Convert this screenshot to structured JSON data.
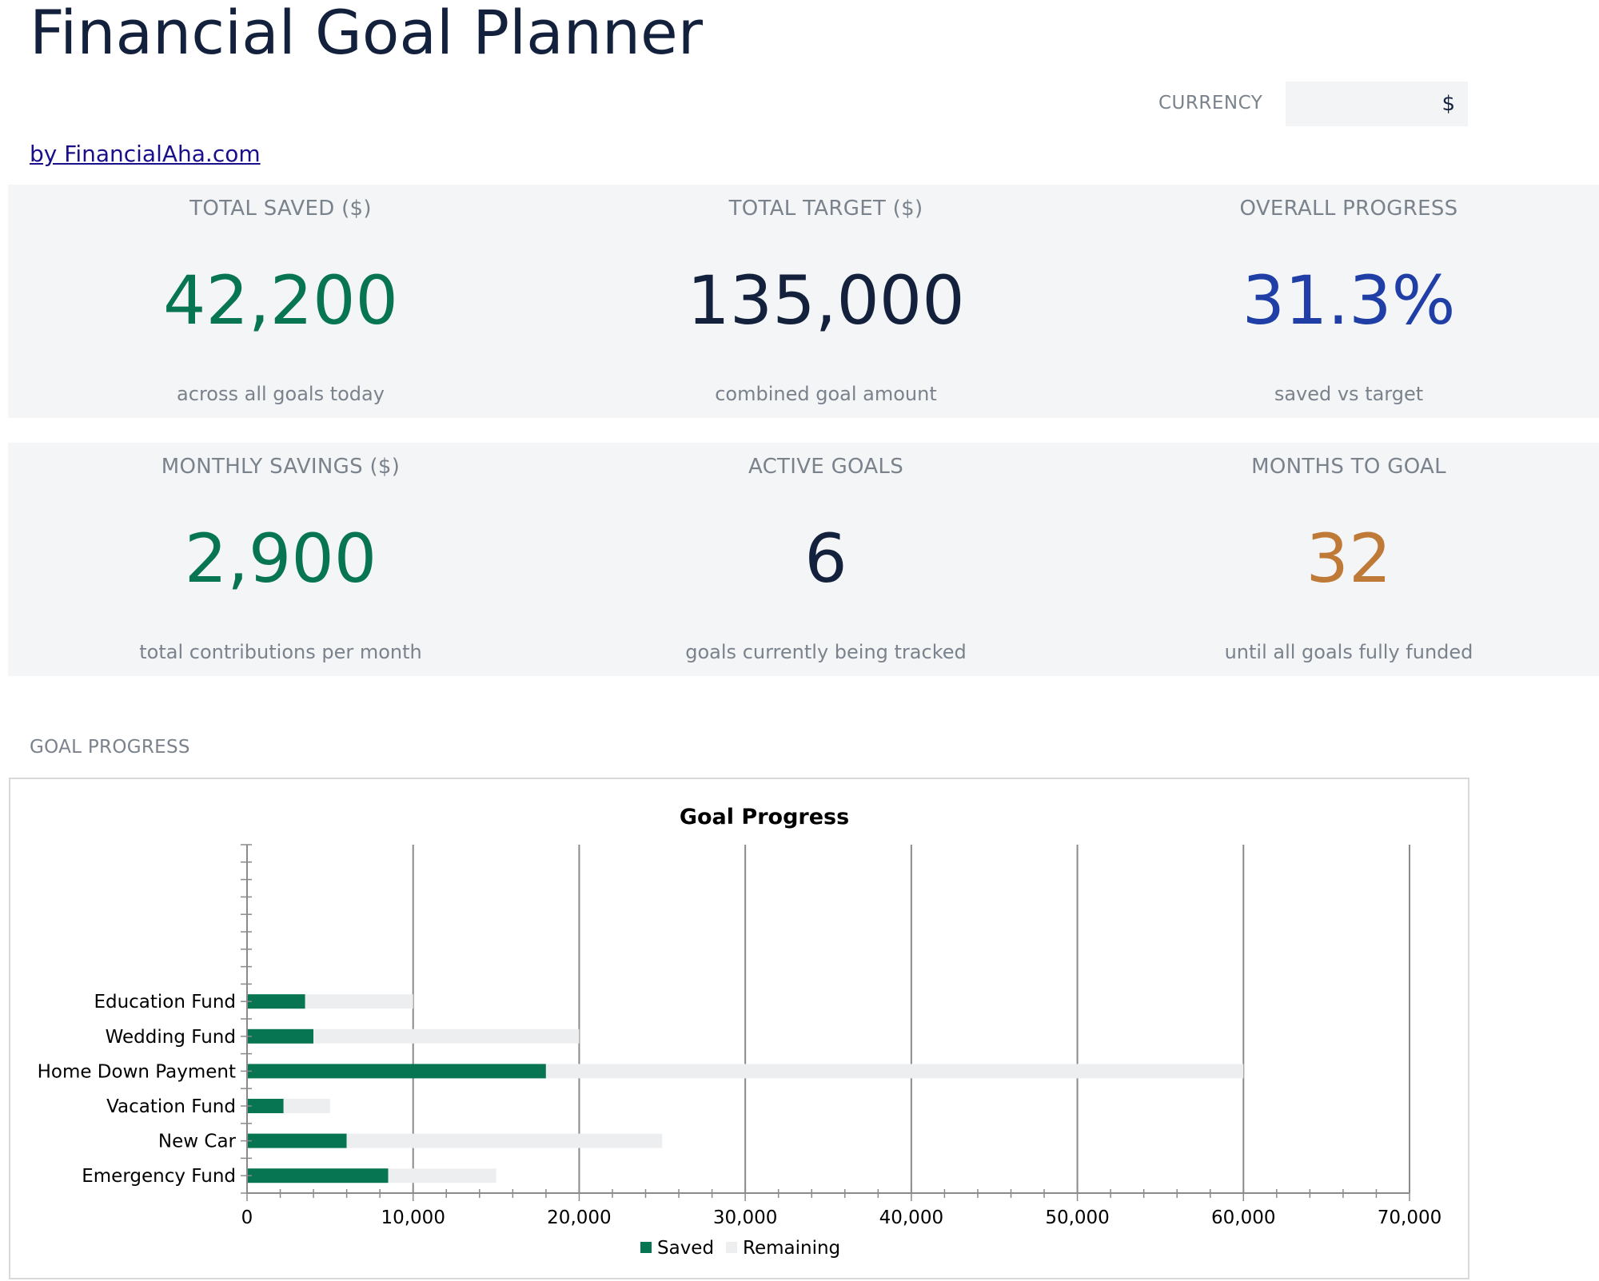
{
  "header": {
    "title": "Financial Goal Planner",
    "credit": "by FinancialAha.com"
  },
  "currency": {
    "label": "CURRENCY",
    "value": "$"
  },
  "kpis": [
    {
      "label": "TOTAL SAVED ($)",
      "value": "42,200",
      "sub": "across all goals today",
      "color": "#087552"
    },
    {
      "label": "TOTAL TARGET ($)",
      "value": "135,000",
      "sub": "combined goal amount",
      "color": "#14213d"
    },
    {
      "label": "OVERALL PROGRESS",
      "value": "31.3%",
      "sub": "saved vs target",
      "color": "#1f3fa6"
    },
    {
      "label": "MONTHLY SAVINGS ($)",
      "value": "2,900",
      "sub": "total contributions per month",
      "color": "#087552"
    },
    {
      "label": "ACTIVE GOALS",
      "value": "6",
      "sub": "goals currently being tracked",
      "color": "#14213d"
    },
    {
      "label": "MONTHS TO GOAL",
      "value": "32",
      "sub": "until all goals fully funded",
      "color": "#c07a37"
    }
  ],
  "section": {
    "goal_progress_label": "GOAL PROGRESS"
  },
  "chart_data": {
    "type": "bar",
    "orientation": "horizontal",
    "stacked": true,
    "title": "Goal Progress",
    "categories": [
      "Emergency Fund",
      "New Car",
      "Vacation Fund",
      "Home Down Payment",
      "Wedding Fund",
      "Education Fund"
    ],
    "series": [
      {
        "name": "Saved",
        "values": [
          8500,
          6000,
          2200,
          18000,
          4000,
          3500
        ],
        "color": "#087552"
      },
      {
        "name": "Remaining",
        "values": [
          6500,
          19000,
          2800,
          42000,
          16000,
          6500
        ],
        "color": "#eceef0"
      }
    ],
    "xlim": [
      0,
      70000
    ],
    "xticks": [
      "0",
      "10,000",
      "20,000",
      "30,000",
      "40,000",
      "50,000",
      "60,000",
      "70,000"
    ],
    "grid": "vertical",
    "legend": "bottom"
  }
}
